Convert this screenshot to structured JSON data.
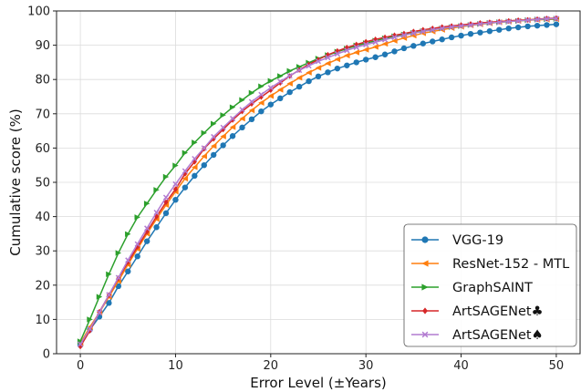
{
  "chart_data": {
    "type": "line",
    "title": "",
    "xlabel": "Error Level (±Years)",
    "ylabel": "Cumulative score (%)",
    "xlim": [
      -2.5,
      52.5
    ],
    "ylim": [
      0,
      100
    ],
    "xticks": [
      0,
      10,
      20,
      30,
      40,
      50
    ],
    "yticks": [
      0,
      10,
      20,
      30,
      40,
      50,
      60,
      70,
      80,
      90,
      100
    ],
    "grid": true,
    "legend_position": "bottom-right",
    "x": [
      0,
      1,
      2,
      3,
      4,
      5,
      6,
      7,
      8,
      9,
      10,
      11,
      12,
      13,
      14,
      15,
      16,
      17,
      18,
      19,
      20,
      21,
      22,
      23,
      24,
      25,
      26,
      27,
      28,
      29,
      30,
      31,
      32,
      33,
      34,
      35,
      36,
      37,
      38,
      39,
      40,
      41,
      42,
      43,
      44,
      45,
      46,
      47,
      48,
      49,
      50
    ],
    "series": [
      {
        "name": "VGG-19",
        "color": "#1f77b4",
        "marker": "circle",
        "values": [
          2.5,
          7.0,
          10.8,
          14.8,
          19.7,
          24.0,
          28.4,
          32.8,
          36.9,
          41.0,
          44.9,
          48.5,
          51.9,
          55.0,
          58.0,
          60.8,
          63.5,
          66.0,
          68.4,
          70.7,
          72.7,
          74.5,
          76.3,
          77.9,
          79.5,
          80.9,
          82.1,
          83.2,
          84.1,
          85.0,
          85.8,
          86.5,
          87.3,
          88.2,
          89.1,
          89.8,
          90.5,
          91.1,
          91.7,
          92.3,
          92.8,
          93.3,
          93.7,
          94.1,
          94.5,
          94.9,
          95.2,
          95.5,
          95.7,
          95.9,
          96.1
        ]
      },
      {
        "name": "ResNet-152 - MTL",
        "color": "#ff7f0e",
        "marker": "triangle-left",
        "values": [
          3.0,
          7.8,
          12.0,
          16.6,
          21.2,
          26.0,
          30.6,
          35.0,
          39.3,
          43.4,
          47.3,
          51.1,
          54.4,
          57.6,
          60.6,
          63.4,
          66.1,
          68.6,
          71.0,
          73.2,
          75.2,
          77.0,
          78.8,
          80.5,
          82.0,
          83.4,
          84.7,
          85.9,
          87.0,
          87.9,
          88.7,
          89.5,
          90.4,
          91.3,
          92.1,
          92.8,
          93.5,
          94.0,
          94.5,
          95.0,
          95.4,
          95.8,
          96.1,
          96.4,
          96.7,
          96.9,
          97.1,
          97.3,
          97.4,
          97.5,
          97.6
        ]
      },
      {
        "name": "GraphSAINT",
        "color": "#2ca02c",
        "marker": "triangle-right",
        "values": [
          3.6,
          10.0,
          16.6,
          23.2,
          29.4,
          34.9,
          39.8,
          43.8,
          47.8,
          51.6,
          54.9,
          58.6,
          61.6,
          64.4,
          67.1,
          69.6,
          71.9,
          74.0,
          76.1,
          78.0,
          79.6,
          81.0,
          82.5,
          83.7,
          84.9,
          86.1,
          87.1,
          88.1,
          89.0,
          89.9,
          90.6,
          91.3,
          92.0,
          92.6,
          93.1,
          93.6,
          94.1,
          94.5,
          94.9,
          95.3,
          95.6,
          95.9,
          96.2,
          96.5,
          96.7,
          96.9,
          97.1,
          97.3,
          97.5,
          97.6,
          97.7
        ]
      },
      {
        "name": "ArtSAGENet♣",
        "color": "#d62728",
        "marker": "diamond",
        "values": [
          2.1,
          6.7,
          12.2,
          17.1,
          22.0,
          26.7,
          31.2,
          35.6,
          40.0,
          44.2,
          48.0,
          52.5,
          56.0,
          59.8,
          62.7,
          65.4,
          68.2,
          70.7,
          72.9,
          74.9,
          76.9,
          79.0,
          81.0,
          82.8,
          84.4,
          85.8,
          87.2,
          88.3,
          89.3,
          90.2,
          91.0,
          91.7,
          92.3,
          92.9,
          93.4,
          94.0,
          94.5,
          94.9,
          95.3,
          95.6,
          95.9,
          96.2,
          96.5,
          96.7,
          96.9,
          97.1,
          97.3,
          97.4,
          97.6,
          97.8,
          97.9
        ]
      },
      {
        "name": "ArtSAGENet♠",
        "color": "#b27bd1",
        "marker": "x",
        "values": [
          2.8,
          7.2,
          12.0,
          17.2,
          22.2,
          27.3,
          32.0,
          36.6,
          41.2,
          45.6,
          49.5,
          53.3,
          56.9,
          60.0,
          63.3,
          66.0,
          68.6,
          71.2,
          73.5,
          75.6,
          77.6,
          79.4,
          81.1,
          82.7,
          84.0,
          85.3,
          86.4,
          87.5,
          88.5,
          89.4,
          90.2,
          90.9,
          91.6,
          92.3,
          92.9,
          93.5,
          94.0,
          94.5,
          94.9,
          95.3,
          95.6,
          95.9,
          96.2,
          96.5,
          96.7,
          96.9,
          97.1,
          97.3,
          97.5,
          97.7,
          97.8
        ]
      }
    ]
  }
}
